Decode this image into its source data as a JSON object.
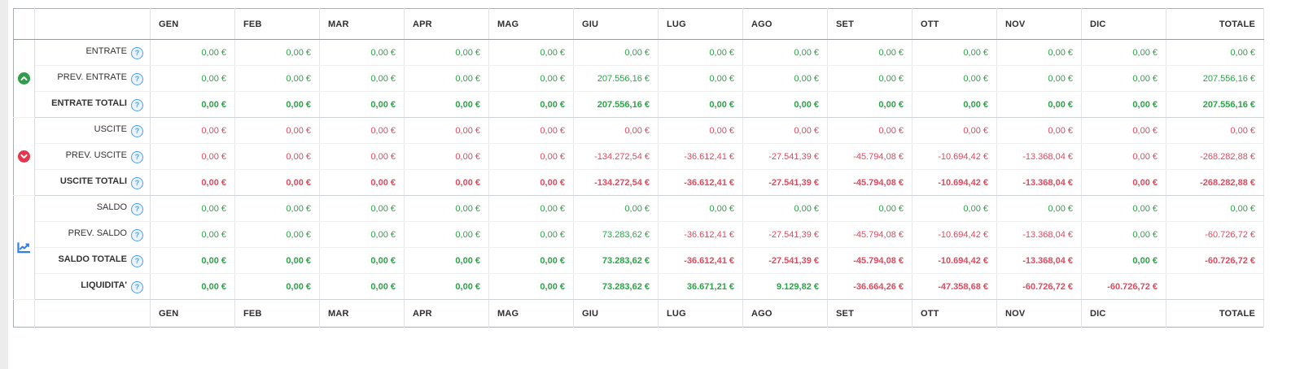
{
  "colors": {
    "pos": "#28a745",
    "neg": "#e8475b",
    "help": "#4aa0f5",
    "icon_up": "#2e9e48",
    "icon_down": "#e8354d",
    "icon_chart": "#2f80ed"
  },
  "icons": {
    "help_glyph": "?"
  },
  "table": {
    "months": [
      "GEN",
      "FEB",
      "MAR",
      "APR",
      "MAG",
      "GIU",
      "LUG",
      "AGO",
      "SET",
      "OTT",
      "NOV",
      "DIC"
    ],
    "total_label": "TOTALE",
    "groups": [
      {
        "icon": "circle-chevron-up-icon",
        "rows": [
          {
            "label": "ENTRATE",
            "bold": false,
            "cells": [
              {
                "v": "0,00 €",
                "t": "pos"
              },
              {
                "v": "0,00 €",
                "t": "pos"
              },
              {
                "v": "0,00 €",
                "t": "pos"
              },
              {
                "v": "0,00 €",
                "t": "pos"
              },
              {
                "v": "0,00 €",
                "t": "pos"
              },
              {
                "v": "0,00 €",
                "t": "pos"
              },
              {
                "v": "0,00 €",
                "t": "pos"
              },
              {
                "v": "0,00 €",
                "t": "pos"
              },
              {
                "v": "0,00 €",
                "t": "pos"
              },
              {
                "v": "0,00 €",
                "t": "pos"
              },
              {
                "v": "0,00 €",
                "t": "pos"
              },
              {
                "v": "0,00 €",
                "t": "pos"
              },
              {
                "v": "0,00 €",
                "t": "pos"
              }
            ]
          },
          {
            "label": "PREV. ENTRATE",
            "bold": false,
            "cells": [
              {
                "v": "0,00 €",
                "t": "pos"
              },
              {
                "v": "0,00 €",
                "t": "pos"
              },
              {
                "v": "0,00 €",
                "t": "pos"
              },
              {
                "v": "0,00 €",
                "t": "pos"
              },
              {
                "v": "0,00 €",
                "t": "pos"
              },
              {
                "v": "207.556,16 €",
                "t": "pos"
              },
              {
                "v": "0,00 €",
                "t": "pos"
              },
              {
                "v": "0,00 €",
                "t": "pos"
              },
              {
                "v": "0,00 €",
                "t": "pos"
              },
              {
                "v": "0,00 €",
                "t": "pos"
              },
              {
                "v": "0,00 €",
                "t": "pos"
              },
              {
                "v": "0,00 €",
                "t": "pos"
              },
              {
                "v": "207.556,16 €",
                "t": "pos"
              }
            ]
          },
          {
            "label": "ENTRATE TOTALI",
            "bold": true,
            "cells": [
              {
                "v": "0,00 €",
                "t": "pos"
              },
              {
                "v": "0,00 €",
                "t": "pos"
              },
              {
                "v": "0,00 €",
                "t": "pos"
              },
              {
                "v": "0,00 €",
                "t": "pos"
              },
              {
                "v": "0,00 €",
                "t": "pos"
              },
              {
                "v": "207.556,16 €",
                "t": "pos"
              },
              {
                "v": "0,00 €",
                "t": "pos"
              },
              {
                "v": "0,00 €",
                "t": "pos"
              },
              {
                "v": "0,00 €",
                "t": "pos"
              },
              {
                "v": "0,00 €",
                "t": "pos"
              },
              {
                "v": "0,00 €",
                "t": "pos"
              },
              {
                "v": "0,00 €",
                "t": "pos"
              },
              {
                "v": "207.556,16 €",
                "t": "pos"
              }
            ]
          }
        ]
      },
      {
        "icon": "circle-chevron-down-icon",
        "rows": [
          {
            "label": "USCITE",
            "bold": false,
            "cells": [
              {
                "v": "0,00 €",
                "t": "neg"
              },
              {
                "v": "0,00 €",
                "t": "neg"
              },
              {
                "v": "0,00 €",
                "t": "neg"
              },
              {
                "v": "0,00 €",
                "t": "neg"
              },
              {
                "v": "0,00 €",
                "t": "neg"
              },
              {
                "v": "0,00 €",
                "t": "neg"
              },
              {
                "v": "0,00 €",
                "t": "neg"
              },
              {
                "v": "0,00 €",
                "t": "neg"
              },
              {
                "v": "0,00 €",
                "t": "neg"
              },
              {
                "v": "0,00 €",
                "t": "neg"
              },
              {
                "v": "0,00 €",
                "t": "neg"
              },
              {
                "v": "0,00 €",
                "t": "neg"
              },
              {
                "v": "0,00 €",
                "t": "neg"
              }
            ]
          },
          {
            "label": "PREV. USCITE",
            "bold": false,
            "cells": [
              {
                "v": "0,00 €",
                "t": "neg"
              },
              {
                "v": "0,00 €",
                "t": "neg"
              },
              {
                "v": "0,00 €",
                "t": "neg"
              },
              {
                "v": "0,00 €",
                "t": "neg"
              },
              {
                "v": "0,00 €",
                "t": "neg"
              },
              {
                "v": "-134.272,54 €",
                "t": "neg"
              },
              {
                "v": "-36.612,41 €",
                "t": "neg"
              },
              {
                "v": "-27.541,39 €",
                "t": "neg"
              },
              {
                "v": "-45.794,08 €",
                "t": "neg"
              },
              {
                "v": "-10.694,42 €",
                "t": "neg"
              },
              {
                "v": "-13.368,04 €",
                "t": "neg"
              },
              {
                "v": "0,00 €",
                "t": "neg"
              },
              {
                "v": "-268.282,88 €",
                "t": "neg"
              }
            ]
          },
          {
            "label": "USCITE TOTALI",
            "bold": true,
            "cells": [
              {
                "v": "0,00 €",
                "t": "neg"
              },
              {
                "v": "0,00 €",
                "t": "neg"
              },
              {
                "v": "0,00 €",
                "t": "neg"
              },
              {
                "v": "0,00 €",
                "t": "neg"
              },
              {
                "v": "0,00 €",
                "t": "neg"
              },
              {
                "v": "-134.272,54 €",
                "t": "neg"
              },
              {
                "v": "-36.612,41 €",
                "t": "neg"
              },
              {
                "v": "-27.541,39 €",
                "t": "neg"
              },
              {
                "v": "-45.794,08 €",
                "t": "neg"
              },
              {
                "v": "-10.694,42 €",
                "t": "neg"
              },
              {
                "v": "-13.368,04 €",
                "t": "neg"
              },
              {
                "v": "0,00 €",
                "t": "neg"
              },
              {
                "v": "-268.282,88 €",
                "t": "neg"
              }
            ]
          }
        ]
      },
      {
        "icon": "chart-line-icon",
        "rows": [
          {
            "label": "SALDO",
            "bold": false,
            "cells": [
              {
                "v": "0,00 €",
                "t": "pos"
              },
              {
                "v": "0,00 €",
                "t": "pos"
              },
              {
                "v": "0,00 €",
                "t": "pos"
              },
              {
                "v": "0,00 €",
                "t": "pos"
              },
              {
                "v": "0,00 €",
                "t": "pos"
              },
              {
                "v": "0,00 €",
                "t": "pos"
              },
              {
                "v": "0,00 €",
                "t": "pos"
              },
              {
                "v": "0,00 €",
                "t": "pos"
              },
              {
                "v": "0,00 €",
                "t": "pos"
              },
              {
                "v": "0,00 €",
                "t": "pos"
              },
              {
                "v": "0,00 €",
                "t": "pos"
              },
              {
                "v": "0,00 €",
                "t": "pos"
              },
              {
                "v": "0,00 €",
                "t": "pos"
              }
            ]
          },
          {
            "label": "PREV. SALDO",
            "bold": false,
            "cells": [
              {
                "v": "0,00 €",
                "t": "pos"
              },
              {
                "v": "0,00 €",
                "t": "pos"
              },
              {
                "v": "0,00 €",
                "t": "pos"
              },
              {
                "v": "0,00 €",
                "t": "pos"
              },
              {
                "v": "0,00 €",
                "t": "pos"
              },
              {
                "v": "73.283,62 €",
                "t": "pos"
              },
              {
                "v": "-36.612,41 €",
                "t": "neg"
              },
              {
                "v": "-27.541,39 €",
                "t": "neg"
              },
              {
                "v": "-45.794,08 €",
                "t": "neg"
              },
              {
                "v": "-10.694,42 €",
                "t": "neg"
              },
              {
                "v": "-13.368,04 €",
                "t": "neg"
              },
              {
                "v": "0,00 €",
                "t": "pos"
              },
              {
                "v": "-60.726,72 €",
                "t": "neg"
              }
            ]
          },
          {
            "label": "SALDO TOTALE",
            "bold": true,
            "cells": [
              {
                "v": "0,00 €",
                "t": "pos"
              },
              {
                "v": "0,00 €",
                "t": "pos"
              },
              {
                "v": "0,00 €",
                "t": "pos"
              },
              {
                "v": "0,00 €",
                "t": "pos"
              },
              {
                "v": "0,00 €",
                "t": "pos"
              },
              {
                "v": "73.283,62 €",
                "t": "pos"
              },
              {
                "v": "-36.612,41 €",
                "t": "neg"
              },
              {
                "v": "-27.541,39 €",
                "t": "neg"
              },
              {
                "v": "-45.794,08 €",
                "t": "neg"
              },
              {
                "v": "-10.694,42 €",
                "t": "neg"
              },
              {
                "v": "-13.368,04 €",
                "t": "neg"
              },
              {
                "v": "0,00 €",
                "t": "pos"
              },
              {
                "v": "-60.726,72 €",
                "t": "neg"
              }
            ]
          },
          {
            "label": "LIQUIDITA'",
            "bold": true,
            "cells": [
              {
                "v": "0,00 €",
                "t": "pos"
              },
              {
                "v": "0,00 €",
                "t": "pos"
              },
              {
                "v": "0,00 €",
                "t": "pos"
              },
              {
                "v": "0,00 €",
                "t": "pos"
              },
              {
                "v": "0,00 €",
                "t": "pos"
              },
              {
                "v": "73.283,62 €",
                "t": "pos"
              },
              {
                "v": "36.671,21 €",
                "t": "pos"
              },
              {
                "v": "9.129,82 €",
                "t": "pos"
              },
              {
                "v": "-36.664,26 €",
                "t": "neg"
              },
              {
                "v": "-47.358,68 €",
                "t": "neg"
              },
              {
                "v": "-60.726,72 €",
                "t": "neg"
              },
              {
                "v": "-60.726,72 €",
                "t": "neg"
              },
              {
                "v": "",
                "t": ""
              }
            ]
          }
        ]
      }
    ]
  }
}
